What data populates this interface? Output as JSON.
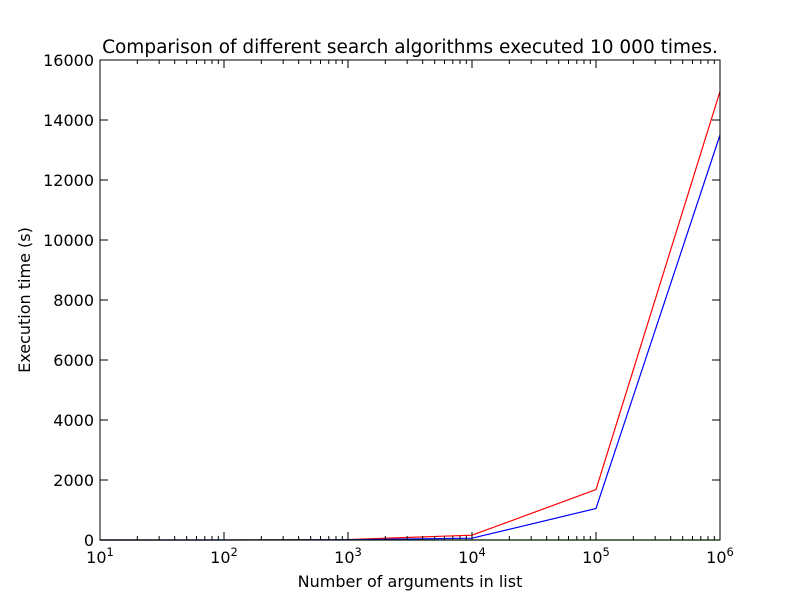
{
  "chart_data": {
    "type": "line",
    "title": "Comparison of different search algorithms executed 10 000 times.",
    "xlabel": "Number of arguments in list",
    "ylabel": "Execution time (s)",
    "xscale": "log",
    "xlim": [
      10,
      1000000
    ],
    "ylim": [
      0,
      16000
    ],
    "x_tick_values": [
      10,
      100,
      1000,
      10000,
      100000,
      1000000
    ],
    "x_tick_labels": [
      {
        "base": "10",
        "exp": "1"
      },
      {
        "base": "10",
        "exp": "2"
      },
      {
        "base": "10",
        "exp": "3"
      },
      {
        "base": "10",
        "exp": "4"
      },
      {
        "base": "10",
        "exp": "5"
      },
      {
        "base": "10",
        "exp": "6"
      }
    ],
    "y_ticks": [
      0,
      2000,
      4000,
      6000,
      8000,
      10000,
      12000,
      14000,
      16000
    ],
    "grid": false,
    "series": [
      {
        "color": "#ff0000",
        "x": [
          10,
          100,
          1000,
          10000,
          100000,
          1000000
        ],
        "y": [
          0,
          2,
          15,
          160,
          1680,
          14950
        ]
      },
      {
        "color": "#0000ff",
        "x": [
          10,
          100,
          1000,
          10000,
          100000,
          1000000
        ],
        "y": [
          0,
          1,
          8,
          60,
          1050,
          13500
        ]
      },
      {
        "color": "#008000",
        "x": [
          10,
          100,
          1000,
          10000,
          100000,
          1000000
        ],
        "y": [
          0,
          0,
          0,
          0,
          0,
          0
        ]
      }
    ]
  }
}
